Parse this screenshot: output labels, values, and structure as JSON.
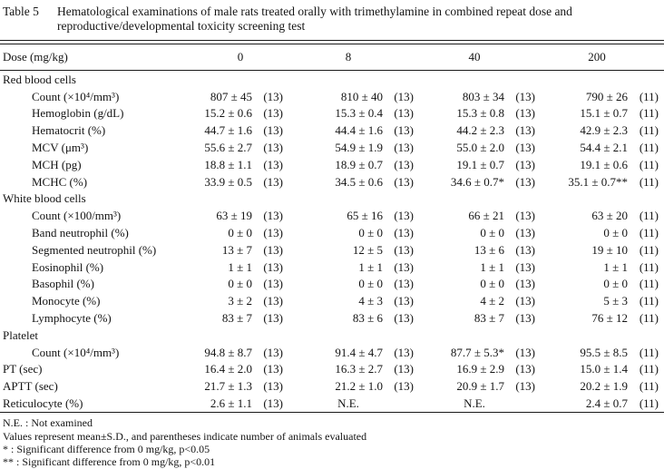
{
  "caption": {
    "label": "Table 5",
    "line1": "Hematological examinations of male rats treated orally with trimethylamine in combined repeat dose and",
    "line2": "reproductive/developmental toxicity screening test"
  },
  "header": {
    "label": "Dose (mg/kg)",
    "doses": [
      "0",
      "8",
      "40",
      "200"
    ]
  },
  "rows": [
    {
      "type": "section",
      "label": "Red blood cells"
    },
    {
      "type": "data",
      "indent": true,
      "label": "Count (×10⁴/mm³)",
      "cells": [
        {
          "v": "807 ± 45",
          "n": "(13)"
        },
        {
          "v": "810 ± 40",
          "n": "(13)"
        },
        {
          "v": "803 ± 34",
          "n": "(13)"
        },
        {
          "v": "790 ± 26",
          "n": "(11)"
        }
      ]
    },
    {
      "type": "data",
      "indent": true,
      "label": "Hemoglobin (g/dL)",
      "cells": [
        {
          "v": "15.2 ± 0.6",
          "n": "(13)"
        },
        {
          "v": "15.3 ± 0.4",
          "n": "(13)"
        },
        {
          "v": "15.3 ± 0.8",
          "n": "(13)"
        },
        {
          "v": "15.1 ± 0.7",
          "n": "(11)"
        }
      ]
    },
    {
      "type": "data",
      "indent": true,
      "label": "Hematocrit (%)",
      "cells": [
        {
          "v": "44.7 ± 1.6",
          "n": "(13)"
        },
        {
          "v": "44.4 ± 1.6",
          "n": "(13)"
        },
        {
          "v": "44.2 ± 2.3",
          "n": "(13)"
        },
        {
          "v": "42.9 ± 2.3",
          "n": "(11)"
        }
      ]
    },
    {
      "type": "data",
      "indent": true,
      "label": "MCV (μm³)",
      "cells": [
        {
          "v": "55.6 ± 2.7",
          "n": "(13)"
        },
        {
          "v": "54.9 ± 1.9",
          "n": "(13)"
        },
        {
          "v": "55.0 ± 2.0",
          "n": "(13)"
        },
        {
          "v": "54.4 ± 2.1",
          "n": "(11)"
        }
      ]
    },
    {
      "type": "data",
      "indent": true,
      "label": "MCH (pg)",
      "cells": [
        {
          "v": "18.8 ± 1.1",
          "n": "(13)"
        },
        {
          "v": "18.9 ± 0.7",
          "n": "(13)"
        },
        {
          "v": "19.1 ± 0.7",
          "n": "(13)"
        },
        {
          "v": "19.1 ± 0.6",
          "n": "(11)"
        }
      ]
    },
    {
      "type": "data",
      "indent": true,
      "label": "MCHC (%)",
      "cells": [
        {
          "v": "33.9 ± 0.5",
          "n": "(13)"
        },
        {
          "v": "34.5 ± 0.6",
          "n": "(13)"
        },
        {
          "v": "34.6 ± 0.7*",
          "n": "(13)"
        },
        {
          "v": "35.1 ± 0.7**",
          "n": "(11)"
        }
      ]
    },
    {
      "type": "section",
      "label": "White blood cells"
    },
    {
      "type": "data",
      "indent": true,
      "label": "Count (×100/mm³)",
      "cells": [
        {
          "v": "63 ± 19",
          "n": "(13)"
        },
        {
          "v": "65 ± 16",
          "n": "(13)"
        },
        {
          "v": "66 ± 21",
          "n": "(13)"
        },
        {
          "v": "63 ± 20",
          "n": "(11)"
        }
      ]
    },
    {
      "type": "data",
      "indent": true,
      "label": "Band neutrophil (%)",
      "cells": [
        {
          "v": "0 ± 0",
          "n": "(13)"
        },
        {
          "v": "0 ± 0",
          "n": "(13)"
        },
        {
          "v": "0 ± 0",
          "n": "(13)"
        },
        {
          "v": "0 ± 0",
          "n": "(11)"
        }
      ]
    },
    {
      "type": "data",
      "indent": true,
      "label": "Segmented neutrophil (%)",
      "cells": [
        {
          "v": "13 ± 7",
          "n": "(13)"
        },
        {
          "v": "12 ± 5",
          "n": "(13)"
        },
        {
          "v": "13 ± 6",
          "n": "(13)"
        },
        {
          "v": "19 ± 10",
          "n": "(11)"
        }
      ]
    },
    {
      "type": "data",
      "indent": true,
      "label": "Eosinophil (%)",
      "cells": [
        {
          "v": "1 ± 1",
          "n": "(13)"
        },
        {
          "v": "1 ± 1",
          "n": "(13)"
        },
        {
          "v": "1 ± 1",
          "n": "(13)"
        },
        {
          "v": "1 ± 1",
          "n": "(11)"
        }
      ]
    },
    {
      "type": "data",
      "indent": true,
      "label": "Basophil (%)",
      "cells": [
        {
          "v": "0 ± 0",
          "n": "(13)"
        },
        {
          "v": "0 ± 0",
          "n": "(13)"
        },
        {
          "v": "0 ± 0",
          "n": "(13)"
        },
        {
          "v": "0 ± 0",
          "n": "(11)"
        }
      ]
    },
    {
      "type": "data",
      "indent": true,
      "label": "Monocyte (%)",
      "cells": [
        {
          "v": "3 ± 2",
          "n": "(13)"
        },
        {
          "v": "4 ± 3",
          "n": "(13)"
        },
        {
          "v": "4 ± 2",
          "n": "(13)"
        },
        {
          "v": "5 ± 3",
          "n": "(11)"
        }
      ]
    },
    {
      "type": "data",
      "indent": true,
      "label": "Lymphocyte (%)",
      "cells": [
        {
          "v": "83 ± 7",
          "n": "(13)"
        },
        {
          "v": "83 ± 6",
          "n": "(13)"
        },
        {
          "v": "83 ± 7",
          "n": "(13)"
        },
        {
          "v": "76 ± 12",
          "n": "(11)"
        }
      ]
    },
    {
      "type": "section",
      "label": "Platelet"
    },
    {
      "type": "data",
      "indent": true,
      "label": "Count (×10⁴/mm³)",
      "cells": [
        {
          "v": "94.8 ± 8.7",
          "n": "(13)"
        },
        {
          "v": "91.4 ± 4.7",
          "n": "(13)"
        },
        {
          "v": "87.7 ± 5.3*",
          "n": "(13)"
        },
        {
          "v": "95.5 ± 8.5",
          "n": "(11)"
        }
      ]
    },
    {
      "type": "data",
      "indent": false,
      "label": "PT (sec)",
      "cells": [
        {
          "v": "16.4 ± 2.0",
          "n": "(13)"
        },
        {
          "v": "16.3 ± 2.7",
          "n": "(13)"
        },
        {
          "v": "16.9 ± 2.9",
          "n": "(13)"
        },
        {
          "v": "15.0 ± 1.4",
          "n": "(11)"
        }
      ]
    },
    {
      "type": "data",
      "indent": false,
      "label": "APTT (sec)",
      "cells": [
        {
          "v": "21.7 ± 1.3",
          "n": "(13)"
        },
        {
          "v": "21.2 ± 1.0",
          "n": "(13)"
        },
        {
          "v": "20.9 ± 1.7",
          "n": "(13)"
        },
        {
          "v": "20.2 ± 1.9",
          "n": "(11)"
        }
      ]
    },
    {
      "type": "data",
      "indent": false,
      "label": "Reticulocyte (%)",
      "cells": [
        {
          "v": "2.6 ± 1.1",
          "n": "(13)"
        },
        {
          "v": "N.E.",
          "n": ""
        },
        {
          "v": "N.E.",
          "n": ""
        },
        {
          "v": "2.4 ± 0.7",
          "n": "(11)"
        }
      ]
    }
  ],
  "footnotes": [
    "N.E. : Not examined",
    "Values represent mean±S.D., and parentheses indicate number of animals evaluated",
    "* : Significant difference from 0 mg/kg, p<0.05",
    "** : Significant difference from 0 mg/kg, p<0.01"
  ]
}
